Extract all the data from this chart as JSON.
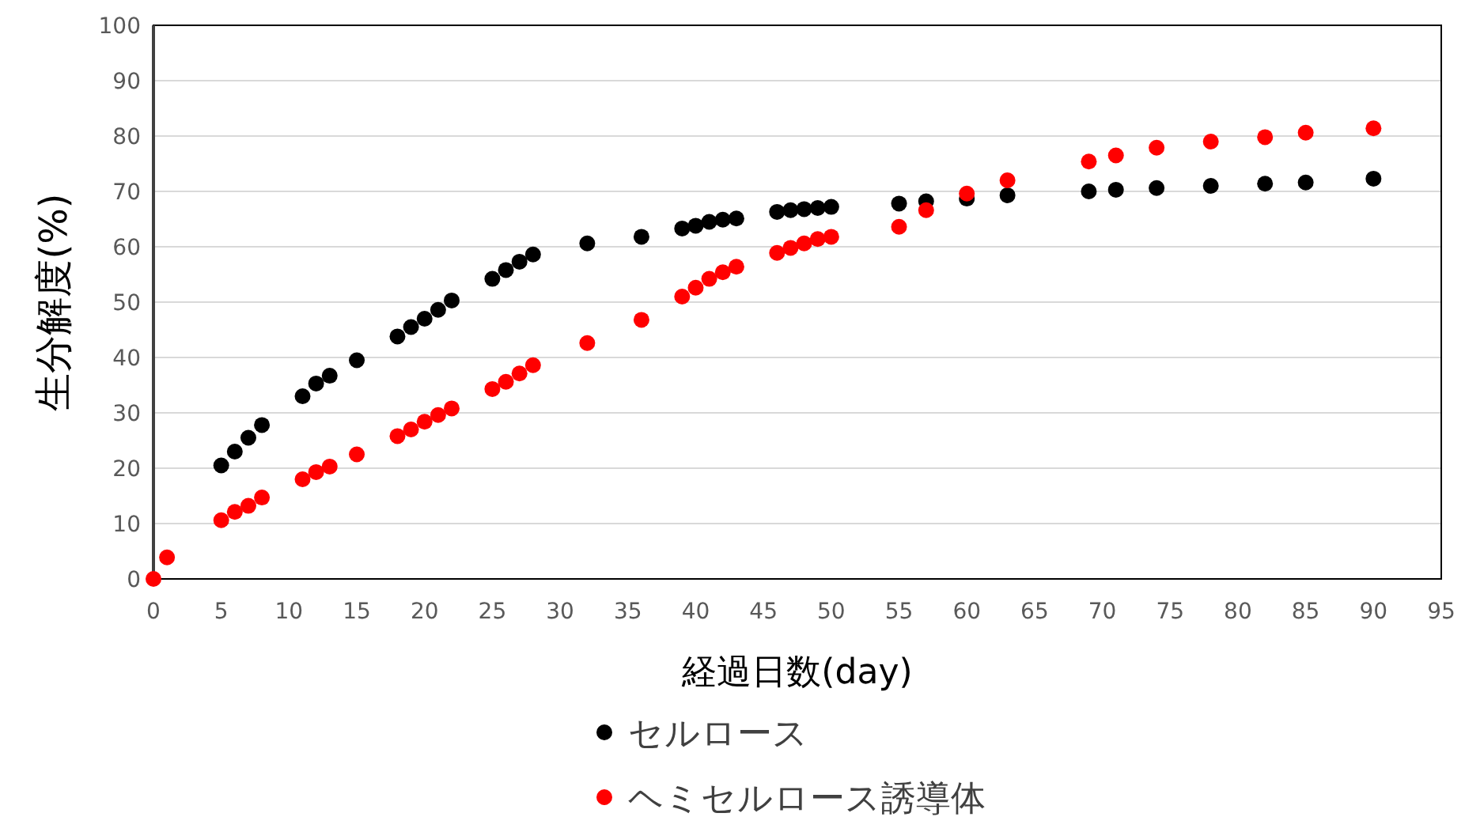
{
  "chart_data": {
    "type": "scatter",
    "xlabel": "経過日数(day)",
    "ylabel": "生分解度(%)",
    "xlim": [
      0,
      95
    ],
    "xticks": [
      0,
      5,
      10,
      15,
      20,
      25,
      30,
      35,
      40,
      45,
      50,
      55,
      60,
      65,
      70,
      75,
      80,
      85,
      90,
      95
    ],
    "ylim": [
      0,
      100
    ],
    "yticks": [
      0,
      10,
      20,
      30,
      40,
      50,
      60,
      70,
      80,
      90,
      100
    ],
    "grid": "y",
    "legend": "bottom",
    "marker": "circle",
    "series": [
      {
        "name": "セルロース",
        "color": "#000000",
        "x": [
          5,
          6,
          7,
          8,
          11,
          12,
          13,
          15,
          18,
          19,
          20,
          21,
          22,
          25,
          26,
          27,
          28,
          32,
          36,
          39,
          40,
          41,
          42,
          43,
          46,
          47,
          48,
          49,
          50,
          55,
          57,
          60,
          63,
          69,
          71,
          74,
          78,
          82,
          85,
          90
        ],
        "values": [
          20.5,
          23,
          25.5,
          27.8,
          33,
          35.3,
          36.7,
          39.5,
          43.8,
          45.5,
          47,
          48.6,
          50.3,
          54.2,
          55.8,
          57.3,
          58.6,
          60.6,
          61.8,
          63.3,
          63.8,
          64.5,
          64.9,
          65.1,
          66.3,
          66.6,
          66.8,
          67,
          67.2,
          67.8,
          68.2,
          68.7,
          69.3,
          70,
          70.3,
          70.6,
          71,
          71.4,
          71.6,
          72.3
        ]
      },
      {
        "name": "ヘミセルロース誘導体",
        "color": "#ff0000",
        "x": [
          0,
          1,
          5,
          6,
          7,
          8,
          11,
          12,
          13,
          15,
          18,
          19,
          20,
          21,
          22,
          25,
          26,
          27,
          28,
          32,
          36,
          39,
          40,
          41,
          42,
          43,
          46,
          47,
          48,
          49,
          50,
          55,
          57,
          60,
          63,
          69,
          71,
          74,
          78,
          82,
          85,
          90
        ],
        "values": [
          0,
          3.9,
          10.6,
          12.1,
          13.2,
          14.7,
          18,
          19.3,
          20.3,
          22.5,
          25.8,
          27,
          28.4,
          29.6,
          30.8,
          34.3,
          35.6,
          37.1,
          38.6,
          42.6,
          46.8,
          51,
          52.6,
          54.2,
          55.4,
          56.4,
          58.9,
          59.8,
          60.6,
          61.4,
          61.8,
          63.6,
          66.6,
          69.6,
          72,
          75.4,
          76.5,
          77.9,
          79,
          79.8,
          80.6,
          81.4
        ]
      }
    ]
  }
}
